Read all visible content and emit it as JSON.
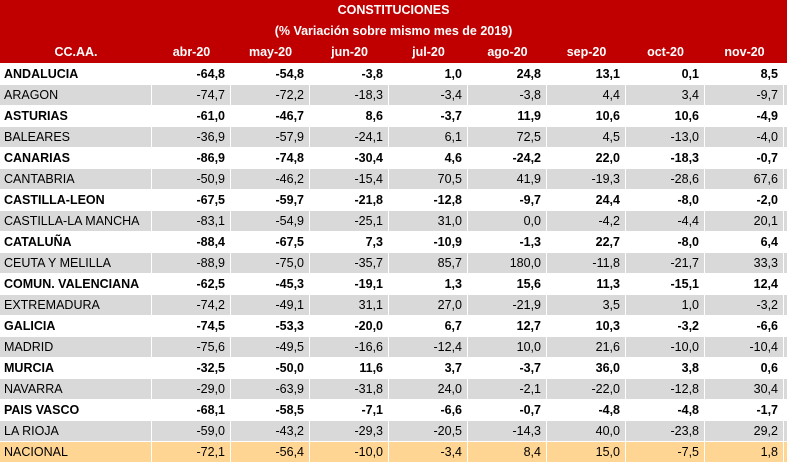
{
  "title": "CONSTITUCIONES",
  "subtitle": "(%  Variación sobre mismo mes de 2019)",
  "columns": [
    "CC.AA.",
    "abr-20",
    "may-20",
    "jun-20",
    "jul-20",
    "ago-20",
    "sep-20",
    "oct-20",
    "nov-20"
  ],
  "rows": [
    {
      "name": "ANDALUCIA",
      "values": [
        "-64,8",
        "-54,8",
        "-3,8",
        "1,0",
        "24,8",
        "13,1",
        "0,1",
        "8,5"
      ]
    },
    {
      "name": "ARAGON",
      "values": [
        "-74,7",
        "-72,2",
        "-18,3",
        "-3,4",
        "-3,8",
        "4,4",
        "3,4",
        "-9,7"
      ]
    },
    {
      "name": "ASTURIAS",
      "values": [
        "-61,0",
        "-46,7",
        "8,6",
        "-3,7",
        "11,9",
        "10,6",
        "10,6",
        "-4,9"
      ]
    },
    {
      "name": "BALEARES",
      "values": [
        "-36,9",
        "-57,9",
        "-24,1",
        "6,1",
        "72,5",
        "4,5",
        "-13,0",
        "-4,0"
      ]
    },
    {
      "name": "CANARIAS",
      "values": [
        "-86,9",
        "-74,8",
        "-30,4",
        "4,6",
        "-24,2",
        "22,0",
        "-18,3",
        "-0,7"
      ]
    },
    {
      "name": "CANTABRIA",
      "values": [
        "-50,9",
        "-46,2",
        "-15,4",
        "70,5",
        "41,9",
        "-19,3",
        "-28,6",
        "67,6"
      ]
    },
    {
      "name": "CASTILLA-LEON",
      "values": [
        "-67,5",
        "-59,7",
        "-21,8",
        "-12,8",
        "-9,7",
        "24,4",
        "-8,0",
        "-2,0"
      ]
    },
    {
      "name": "CASTILLA-LA MANCHA",
      "values": [
        "-83,1",
        "-54,9",
        "-25,1",
        "31,0",
        "0,0",
        "-4,2",
        "-4,4",
        "20,1"
      ]
    },
    {
      "name": "CATALUÑA",
      "values": [
        "-88,4",
        "-67,5",
        "7,3",
        "-10,9",
        "-1,3",
        "22,7",
        "-8,0",
        "6,4"
      ]
    },
    {
      "name": "CEUTA Y MELILLA",
      "values": [
        "-88,9",
        "-75,0",
        "-35,7",
        "85,7",
        "180,0",
        "-11,8",
        "-21,7",
        "33,3"
      ]
    },
    {
      "name": "COMUN. VALENCIANA",
      "values": [
        "-62,5",
        "-45,3",
        "-19,1",
        "1,3",
        "15,6",
        "11,3",
        "-15,1",
        "12,4"
      ]
    },
    {
      "name": "EXTREMADURA",
      "values": [
        "-74,2",
        "-49,1",
        "31,1",
        "27,0",
        "-21,9",
        "3,5",
        "1,0",
        "-3,2"
      ]
    },
    {
      "name": "GALICIA",
      "values": [
        "-74,5",
        "-53,3",
        "-20,0",
        "6,7",
        "12,7",
        "10,3",
        "-3,2",
        "-6,6"
      ]
    },
    {
      "name": "MADRID",
      "values": [
        "-75,6",
        "-49,5",
        "-16,6",
        "-12,4",
        "10,0",
        "21,6",
        "-10,0",
        "-10,4"
      ]
    },
    {
      "name": "MURCIA",
      "values": [
        "-32,5",
        "-50,0",
        "11,6",
        "3,7",
        "-3,7",
        "36,0",
        "3,8",
        "0,6"
      ]
    },
    {
      "name": "NAVARRA",
      "values": [
        "-29,0",
        "-63,9",
        "-31,8",
        "24,0",
        "-2,1",
        "-22,0",
        "-12,8",
        "30,4"
      ]
    },
    {
      "name": "PAIS VASCO",
      "values": [
        "-68,1",
        "-58,5",
        "-7,1",
        "-6,6",
        "-0,7",
        "-4,8",
        "-4,8",
        "-1,7"
      ]
    },
    {
      "name": "LA RIOJA",
      "values": [
        "-59,0",
        "-43,2",
        "-29,3",
        "-20,5",
        "-14,3",
        "40,0",
        "-23,8",
        "29,2"
      ]
    }
  ],
  "total": {
    "name": "NACIONAL",
    "values": [
      "-72,1",
      "-56,4",
      "-10,0",
      "-3,4",
      "8,4",
      "15,0",
      "-7,5",
      "1,8"
    ]
  },
  "colors": {
    "header_bg": "#c00000",
    "alt_row_bg": "#d9d9d9",
    "total_bg": "#ffd594"
  }
}
